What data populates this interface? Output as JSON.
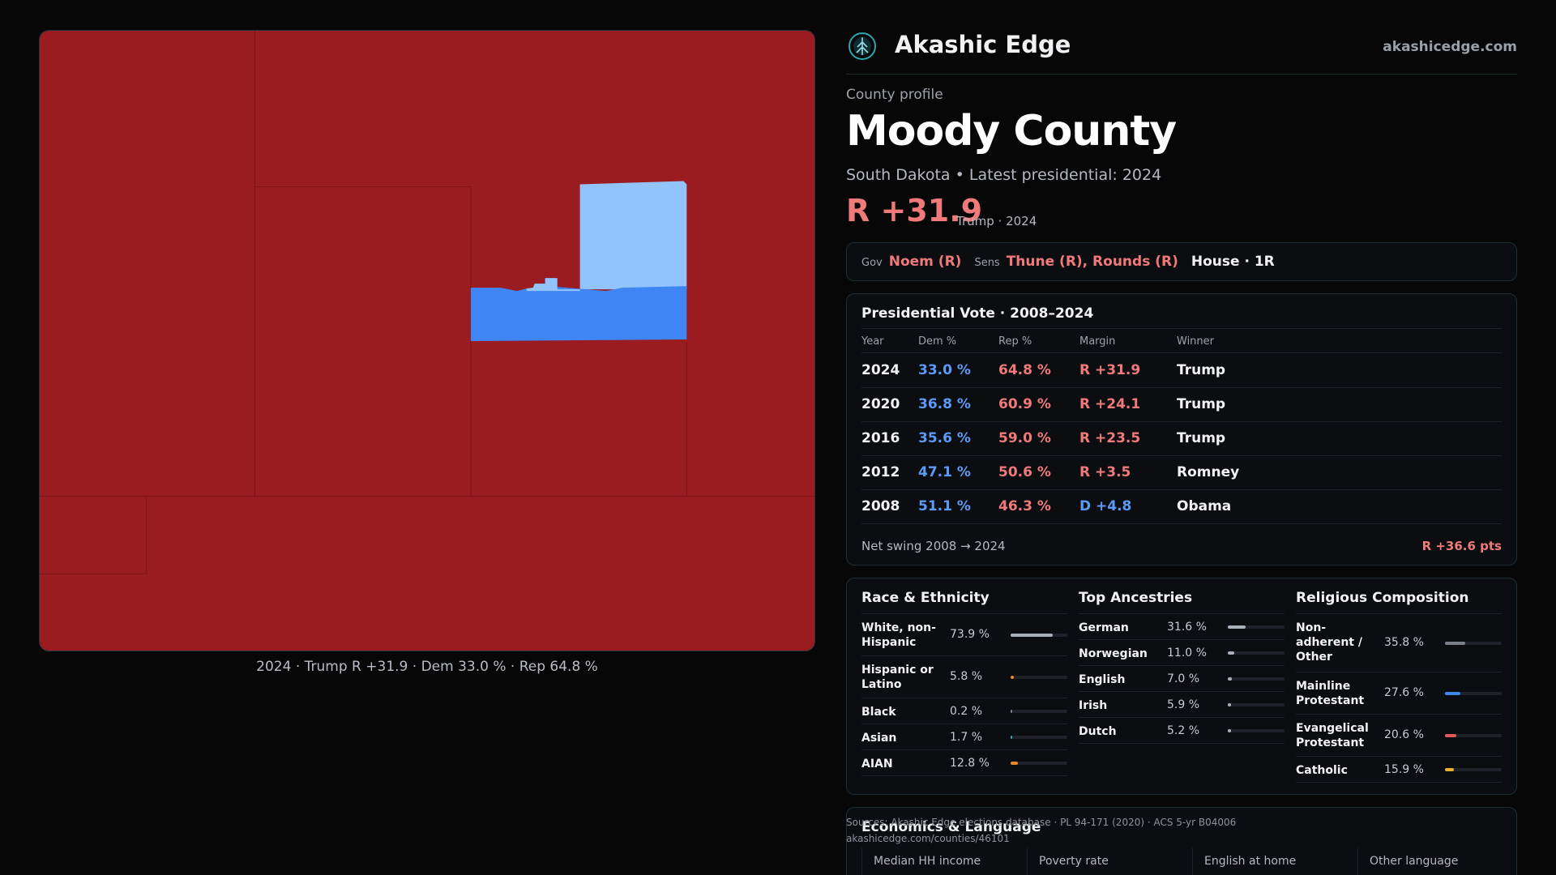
{
  "colors": {
    "rep_fill": "#9b1c20",
    "dem_light": "#92c4fb",
    "dem_strong": "#3f86f4",
    "rep_text": "#f07a7a",
    "dem_text": "#5b9bf8",
    "accent_teal": "#2aa6b0"
  },
  "map": {
    "caption": "2024 · Trump R +31.9 · Dem 33.0 % · Rep 64.8 %"
  },
  "brand": {
    "logo_icon": "tree-globe-icon",
    "name": "Akashic Edge",
    "url": "akashicedge.com"
  },
  "county": {
    "kicker": "County profile",
    "name": "Moody County",
    "subtitle": "South Dakota • Latest presidential: 2024",
    "margin": "R +31.9",
    "margin_note": "Trump · 2024"
  },
  "officials": {
    "gov_label": "Gov",
    "gov": "Noem (R)",
    "sens_label": "Sens",
    "sens": "Thune (R), Rounds (R)",
    "house": "House · 1R"
  },
  "presidential": {
    "title": "Presidential Vote · 2008–2024",
    "headers": [
      "Year",
      "Dem %",
      "Rep %",
      "Margin",
      "Winner"
    ],
    "rows": [
      {
        "year": "2024",
        "dem": "33.0 %",
        "rep": "64.8 %",
        "margin": "R +31.9",
        "party": "R",
        "winner": "Trump"
      },
      {
        "year": "2020",
        "dem": "36.8 %",
        "rep": "60.9 %",
        "margin": "R +24.1",
        "party": "R",
        "winner": "Trump"
      },
      {
        "year": "2016",
        "dem": "35.6 %",
        "rep": "59.0 %",
        "margin": "R +23.5",
        "party": "R",
        "winner": "Trump"
      },
      {
        "year": "2012",
        "dem": "47.1 %",
        "rep": "50.6 %",
        "margin": "R +3.5",
        "party": "R",
        "winner": "Romney"
      },
      {
        "year": "2008",
        "dem": "51.1 %",
        "rep": "46.3 %",
        "margin": "D +4.8",
        "party": "D",
        "winner": "Obama"
      }
    ],
    "swing_label": "Net swing 2008 → 2024",
    "swing_value": "R +36.6 pts"
  },
  "demographics": {
    "race": {
      "title": "Race & Ethnicity",
      "items": [
        {
          "label": "White, non-Hispanic",
          "value": "73.9 %",
          "pct": 73.9,
          "color": "#aab0ba"
        },
        {
          "label": "Hispanic or Latino",
          "value": "5.8 %",
          "pct": 5.8,
          "color": "#e8882e"
        },
        {
          "label": "Black",
          "value": "0.2 %",
          "pct": 0.2,
          "color": "#7a7f88"
        },
        {
          "label": "Asian",
          "value": "1.7 %",
          "pct": 1.7,
          "color": "#2aa6b0"
        },
        {
          "label": "AIAN",
          "value": "12.8 %",
          "pct": 12.8,
          "color": "#e8882e"
        }
      ]
    },
    "ancestry": {
      "title": "Top Ancestries",
      "items": [
        {
          "label": "German",
          "value": "31.6 %",
          "pct": 31.6,
          "color": "#aab0ba"
        },
        {
          "label": "Norwegian",
          "value": "11.0 %",
          "pct": 11.0,
          "color": "#aab0ba"
        },
        {
          "label": "English",
          "value": "7.0 %",
          "pct": 7.0,
          "color": "#aab0ba"
        },
        {
          "label": "Irish",
          "value": "5.9 %",
          "pct": 5.9,
          "color": "#aab0ba"
        },
        {
          "label": "Dutch",
          "value": "5.2 %",
          "pct": 5.2,
          "color": "#aab0ba"
        }
      ]
    },
    "religion": {
      "title": "Religious Composition",
      "items": [
        {
          "label": "Non-adherent / Other",
          "value": "35.8 %",
          "pct": 35.8,
          "color": "#7a7f88"
        },
        {
          "label": "Mainline Protestant",
          "value": "27.6 %",
          "pct": 27.6,
          "color": "#3f86f4"
        },
        {
          "label": "Evangelical Protestant",
          "value": "20.6 %",
          "pct": 20.6,
          "color": "#e05a5a"
        },
        {
          "label": "Catholic",
          "value": "15.9 %",
          "pct": 15.9,
          "color": "#e8b02e"
        }
      ]
    }
  },
  "economics": {
    "title": "Economics & Language",
    "cells": [
      "Median HH income",
      "Poverty rate",
      "English at home",
      "Other language"
    ]
  },
  "sources": {
    "line1": "Sources: Akashic Edge elections database · PL 94-171 (2020) · ACS 5-yr B04006",
    "line2": "akashicedge.com/counties/46101"
  }
}
